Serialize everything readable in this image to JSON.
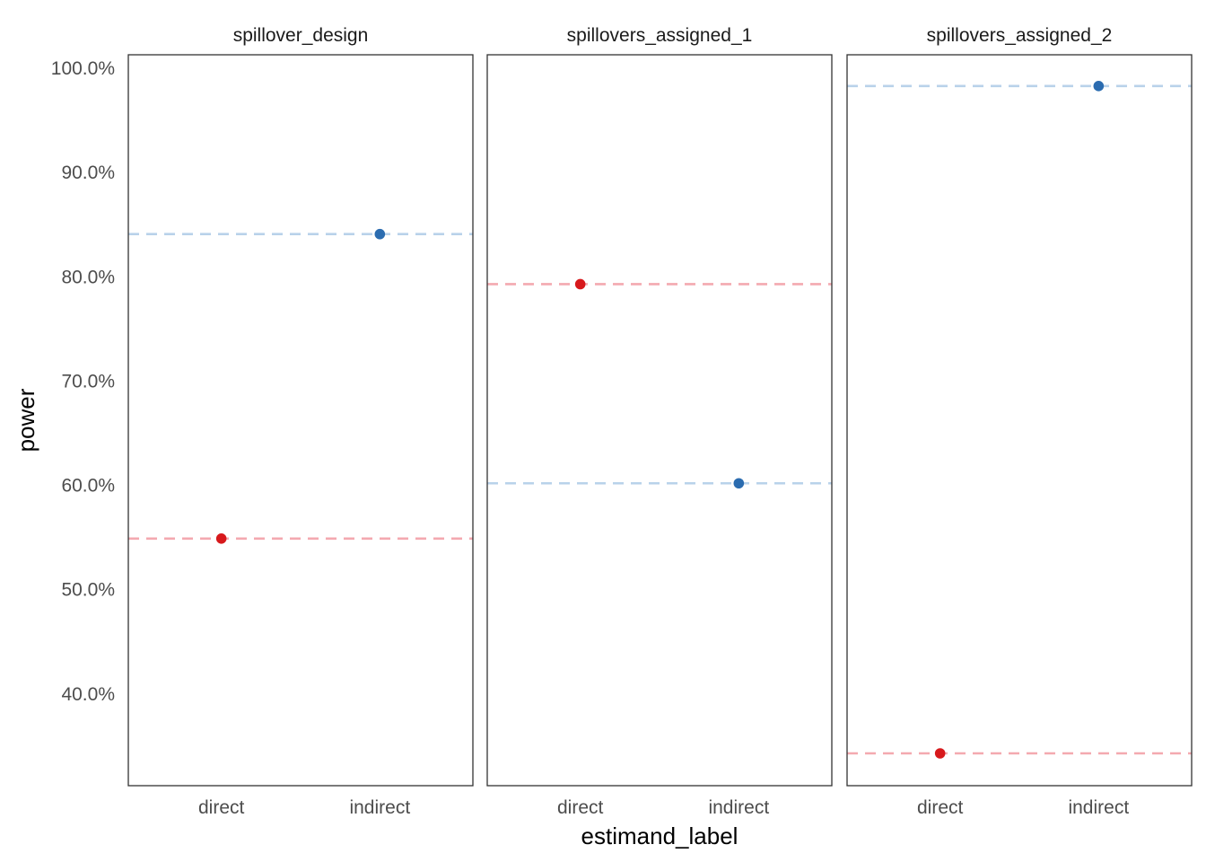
{
  "chart_data": {
    "type": "scatter",
    "facets": [
      "spillover_design",
      "spillovers_assigned_1",
      "spillovers_assigned_2"
    ],
    "categories": [
      "direct",
      "indirect"
    ],
    "xlabel": "estimand_label",
    "ylabel": "power",
    "ylim": [
      31.2,
      101.3
    ],
    "yticks": [
      40,
      50,
      60,
      70,
      80,
      90,
      100
    ],
    "ytick_labels": [
      "40.0%",
      "50.0%",
      "60.0%",
      "70.0%",
      "80.0%",
      "90.0%",
      "100.0%"
    ],
    "grid": false,
    "reference_lines": "dashed horizontal line at each point's value",
    "points": [
      {
        "facet": "spillover_design",
        "category": "direct",
        "value": 54.9,
        "color": "#d7191c"
      },
      {
        "facet": "spillover_design",
        "category": "indirect",
        "value": 84.1,
        "color": "#2b6cb0"
      },
      {
        "facet": "spillovers_assigned_1",
        "category": "direct",
        "value": 79.3,
        "color": "#d7191c"
      },
      {
        "facet": "spillovers_assigned_1",
        "category": "indirect",
        "value": 60.2,
        "color": "#2b6cb0"
      },
      {
        "facet": "spillovers_assigned_2",
        "category": "direct",
        "value": 34.3,
        "color": "#d7191c"
      },
      {
        "facet": "spillovers_assigned_2",
        "category": "indirect",
        "value": 98.3,
        "color": "#2b6cb0"
      }
    ],
    "colors": {
      "direct": "#d7191c",
      "indirect": "#2b6cb0",
      "direct_line": "#f4a9b0",
      "indirect_line": "#b9d2ea"
    }
  }
}
